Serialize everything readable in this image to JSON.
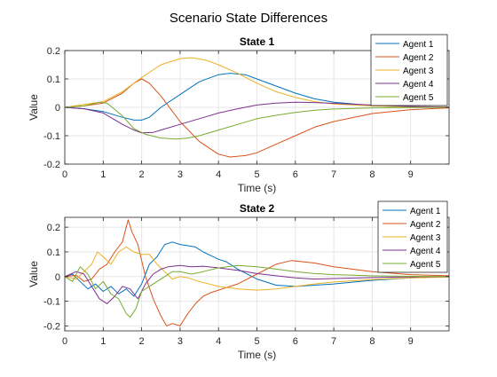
{
  "figure": {
    "title": "Scenario State Differences"
  },
  "colors": [
    "#0072BD",
    "#D95319",
    "#EDB120",
    "#7E2F8E",
    "#77AC30"
  ],
  "chart_data": [
    {
      "type": "line",
      "title": "State 1",
      "xlabel": "Time (s)",
      "ylabel": "Value",
      "xlim": [
        0,
        10
      ],
      "ylim": [
        -0.2,
        0.2
      ],
      "xticks": [
        0,
        1,
        2,
        3,
        4,
        5,
        6,
        7,
        8,
        9
      ],
      "yticks": [
        -0.2,
        -0.1,
        0,
        0.1,
        0.2
      ],
      "grid": true,
      "legend_position": "top-right",
      "series": [
        {
          "name": "Agent 1",
          "points": [
            [
              0,
              0
            ],
            [
              0.5,
              -0.005
            ],
            [
              1,
              -0.015
            ],
            [
              1.5,
              -0.035
            ],
            [
              1.8,
              -0.045
            ],
            [
              2.0,
              -0.045
            ],
            [
              2.2,
              -0.035
            ],
            [
              2.5,
              0
            ],
            [
              3.0,
              0.045
            ],
            [
              3.5,
              0.09
            ],
            [
              4.0,
              0.115
            ],
            [
              4.3,
              0.12
            ],
            [
              4.7,
              0.115
            ],
            [
              5.0,
              0.1
            ],
            [
              5.5,
              0.075
            ],
            [
              6.0,
              0.05
            ],
            [
              6.5,
              0.03
            ],
            [
              7.0,
              0.018
            ],
            [
              8.0,
              0.006
            ],
            [
              9.0,
              0.002
            ],
            [
              10,
              0
            ]
          ]
        },
        {
          "name": "Agent 2",
          "points": [
            [
              0,
              0
            ],
            [
              0.5,
              0.005
            ],
            [
              1,
              0.015
            ],
            [
              1.5,
              0.05
            ],
            [
              1.8,
              0.085
            ],
            [
              2.0,
              0.1
            ],
            [
              2.2,
              0.085
            ],
            [
              2.5,
              0.04
            ],
            [
              3.0,
              -0.05
            ],
            [
              3.5,
              -0.12
            ],
            [
              4.0,
              -0.165
            ],
            [
              4.3,
              -0.175
            ],
            [
              4.7,
              -0.17
            ],
            [
              5.0,
              -0.16
            ],
            [
              5.5,
              -0.13
            ],
            [
              6.0,
              -0.1
            ],
            [
              6.5,
              -0.07
            ],
            [
              7.0,
              -0.05
            ],
            [
              8.0,
              -0.022
            ],
            [
              9.0,
              -0.008
            ],
            [
              10,
              -0.002
            ]
          ]
        },
        {
          "name": "Agent 3",
          "points": [
            [
              0,
              0
            ],
            [
              0.5,
              0.01
            ],
            [
              1,
              0.02
            ],
            [
              1.5,
              0.055
            ],
            [
              2.0,
              0.105
            ],
            [
              2.5,
              0.15
            ],
            [
              3.0,
              0.172
            ],
            [
              3.3,
              0.175
            ],
            [
              3.7,
              0.165
            ],
            [
              4.0,
              0.15
            ],
            [
              4.5,
              0.12
            ],
            [
              5.0,
              0.085
            ],
            [
              5.5,
              0.055
            ],
            [
              6.0,
              0.035
            ],
            [
              6.5,
              0.02
            ],
            [
              7.0,
              0.012
            ],
            [
              8.0,
              0.005
            ],
            [
              9.0,
              0.002
            ],
            [
              10,
              0
            ]
          ]
        },
        {
          "name": "Agent 4",
          "points": [
            [
              0,
              0
            ],
            [
              0.5,
              -0.005
            ],
            [
              1,
              -0.02
            ],
            [
              1.5,
              -0.06
            ],
            [
              1.8,
              -0.08
            ],
            [
              2.0,
              -0.09
            ],
            [
              2.3,
              -0.088
            ],
            [
              2.5,
              -0.08
            ],
            [
              3.0,
              -0.06
            ],
            [
              3.5,
              -0.04
            ],
            [
              4.0,
              -0.02
            ],
            [
              4.5,
              -0.005
            ],
            [
              5.0,
              0.008
            ],
            [
              5.5,
              0.015
            ],
            [
              6.0,
              0.018
            ],
            [
              6.5,
              0.017
            ],
            [
              7.0,
              0.014
            ],
            [
              8.0,
              0.008
            ],
            [
              9.0,
              0.003
            ],
            [
              10,
              0.001
            ]
          ]
        },
        {
          "name": "Agent 5",
          "points": [
            [
              0,
              0
            ],
            [
              0.5,
              0.005
            ],
            [
              0.9,
              0.018
            ],
            [
              1.1,
              0.015
            ],
            [
              1.5,
              -0.03
            ],
            [
              1.8,
              -0.075
            ],
            [
              2.1,
              -0.095
            ],
            [
              2.5,
              -0.108
            ],
            [
              2.9,
              -0.112
            ],
            [
              3.2,
              -0.108
            ],
            [
              3.5,
              -0.1
            ],
            [
              4.0,
              -0.08
            ],
            [
              4.5,
              -0.06
            ],
            [
              5.0,
              -0.04
            ],
            [
              5.5,
              -0.028
            ],
            [
              6.0,
              -0.018
            ],
            [
              6.5,
              -0.01
            ],
            [
              7.0,
              -0.006
            ],
            [
              8.0,
              -0.002
            ],
            [
              9.0,
              -0.001
            ],
            [
              10,
              0
            ]
          ]
        }
      ]
    },
    {
      "type": "line",
      "title": "State 2",
      "xlabel": "Time (s)",
      "ylabel": "Value",
      "xlim": [
        0,
        10
      ],
      "ylim": [
        -0.22,
        0.24
      ],
      "xticks": [
        0,
        1,
        2,
        3,
        4,
        5,
        6,
        7,
        8,
        9
      ],
      "yticks": [
        -0.2,
        -0.1,
        0,
        0.1,
        0.2
      ],
      "grid": true,
      "legend_position": "top-right",
      "series": [
        {
          "name": "Agent 1",
          "points": [
            [
              0,
              0
            ],
            [
              0.2,
              0.01
            ],
            [
              0.4,
              -0.02
            ],
            [
              0.6,
              -0.05
            ],
            [
              0.8,
              -0.03
            ],
            [
              1.0,
              -0.06
            ],
            [
              1.2,
              -0.04
            ],
            [
              1.4,
              -0.07
            ],
            [
              1.6,
              -0.05
            ],
            [
              1.8,
              -0.08
            ],
            [
              2.0,
              -0.03
            ],
            [
              2.2,
              0.05
            ],
            [
              2.4,
              0.08
            ],
            [
              2.6,
              0.13
            ],
            [
              2.8,
              0.14
            ],
            [
              3.0,
              0.13
            ],
            [
              3.2,
              0.125
            ],
            [
              3.4,
              0.12
            ],
            [
              3.6,
              0.1
            ],
            [
              3.8,
              0.085
            ],
            [
              4.0,
              0.07
            ],
            [
              4.2,
              0.06
            ],
            [
              4.5,
              0.03
            ],
            [
              5.0,
              -0.01
            ],
            [
              5.5,
              -0.035
            ],
            [
              6.0,
              -0.04
            ],
            [
              6.5,
              -0.035
            ],
            [
              7.0,
              -0.03
            ],
            [
              8.0,
              -0.015
            ],
            [
              9.0,
              -0.005
            ],
            [
              10,
              0
            ]
          ]
        },
        {
          "name": "Agent 2",
          "points": [
            [
              0,
              0
            ],
            [
              0.3,
              0.005
            ],
            [
              0.5,
              -0.02
            ],
            [
              0.7,
              -0.01
            ],
            [
              0.9,
              0.03
            ],
            [
              1.1,
              0.05
            ],
            [
              1.3,
              0.1
            ],
            [
              1.5,
              0.14
            ],
            [
              1.65,
              0.23
            ],
            [
              1.75,
              0.18
            ],
            [
              1.9,
              0.13
            ],
            [
              2.1,
              0
            ],
            [
              2.3,
              -0.09
            ],
            [
              2.5,
              -0.16
            ],
            [
              2.65,
              -0.2
            ],
            [
              2.8,
              -0.19
            ],
            [
              3.0,
              -0.2
            ],
            [
              3.2,
              -0.15
            ],
            [
              3.4,
              -0.11
            ],
            [
              3.6,
              -0.08
            ],
            [
              3.8,
              -0.065
            ],
            [
              4.0,
              -0.055
            ],
            [
              4.5,
              -0.03
            ],
            [
              5.0,
              0.01
            ],
            [
              5.5,
              0.05
            ],
            [
              5.9,
              0.065
            ],
            [
              6.5,
              0.055
            ],
            [
              7.0,
              0.04
            ],
            [
              8.0,
              0.02
            ],
            [
              9.0,
              0.008
            ],
            [
              10,
              0.003
            ]
          ]
        },
        {
          "name": "Agent 3",
          "points": [
            [
              0,
              0
            ],
            [
              0.3,
              -0.01
            ],
            [
              0.5,
              0.02
            ],
            [
              0.7,
              0.05
            ],
            [
              0.85,
              0.1
            ],
            [
              1.0,
              0.08
            ],
            [
              1.2,
              0.05
            ],
            [
              1.4,
              0.1
            ],
            [
              1.6,
              0.12
            ],
            [
              1.8,
              0.1
            ],
            [
              2.0,
              0.09
            ],
            [
              2.2,
              0.09
            ],
            [
              2.4,
              0.05
            ],
            [
              2.6,
              0.02
            ],
            [
              2.8,
              -0.01
            ],
            [
              3.0,
              0
            ],
            [
              3.2,
              -0.005
            ],
            [
              3.5,
              -0.02
            ],
            [
              4.0,
              -0.04
            ],
            [
              4.5,
              -0.05
            ],
            [
              5.0,
              -0.055
            ],
            [
              5.5,
              -0.05
            ],
            [
              6.0,
              -0.04
            ],
            [
              6.5,
              -0.03
            ],
            [
              7.0,
              -0.022
            ],
            [
              8.0,
              -0.012
            ],
            [
              9.0,
              -0.005
            ],
            [
              10,
              -0.002
            ]
          ]
        },
        {
          "name": "Agent 4",
          "points": [
            [
              0,
              0
            ],
            [
              0.3,
              0.02
            ],
            [
              0.5,
              0.01
            ],
            [
              0.7,
              -0.04
            ],
            [
              0.9,
              -0.09
            ],
            [
              1.1,
              -0.11
            ],
            [
              1.3,
              -0.08
            ],
            [
              1.5,
              -0.04
            ],
            [
              1.7,
              -0.05
            ],
            [
              1.9,
              -0.09
            ],
            [
              2.1,
              -0.03
            ],
            [
              2.3,
              0.01
            ],
            [
              2.5,
              0.03
            ],
            [
              2.7,
              0.04
            ],
            [
              3.0,
              0.045
            ],
            [
              3.3,
              0.04
            ],
            [
              3.6,
              0.042
            ],
            [
              4.0,
              0.035
            ],
            [
              4.5,
              0.025
            ],
            [
              5.0,
              0.012
            ],
            [
              5.5,
              0.003
            ],
            [
              6.0,
              -0.005
            ],
            [
              6.5,
              -0.01
            ],
            [
              7.0,
              -0.008
            ],
            [
              8.0,
              -0.004
            ],
            [
              9.0,
              -0.001
            ],
            [
              10,
              0
            ]
          ]
        },
        {
          "name": "Agent 5",
          "points": [
            [
              0,
              0
            ],
            [
              0.2,
              -0.02
            ],
            [
              0.4,
              0.04
            ],
            [
              0.6,
              0.01
            ],
            [
              0.8,
              -0.05
            ],
            [
              1.0,
              -0.02
            ],
            [
              1.2,
              -0.07
            ],
            [
              1.4,
              -0.09
            ],
            [
              1.6,
              -0.15
            ],
            [
              1.7,
              -0.165
            ],
            [
              1.85,
              -0.13
            ],
            [
              2.0,
              -0.06
            ],
            [
              2.2,
              -0.04
            ],
            [
              2.4,
              -0.02
            ],
            [
              2.6,
              0
            ],
            [
              2.8,
              0.02
            ],
            [
              3.0,
              0.02
            ],
            [
              3.3,
              0.01
            ],
            [
              3.6,
              0.02
            ],
            [
              4.0,
              0.035
            ],
            [
              4.5,
              0.045
            ],
            [
              5.0,
              0.04
            ],
            [
              5.5,
              0.03
            ],
            [
              6.0,
              0.02
            ],
            [
              6.5,
              0.012
            ],
            [
              7.0,
              0.008
            ],
            [
              8.0,
              0.003
            ],
            [
              9.0,
              0.001
            ],
            [
              10,
              0
            ]
          ]
        }
      ]
    }
  ]
}
